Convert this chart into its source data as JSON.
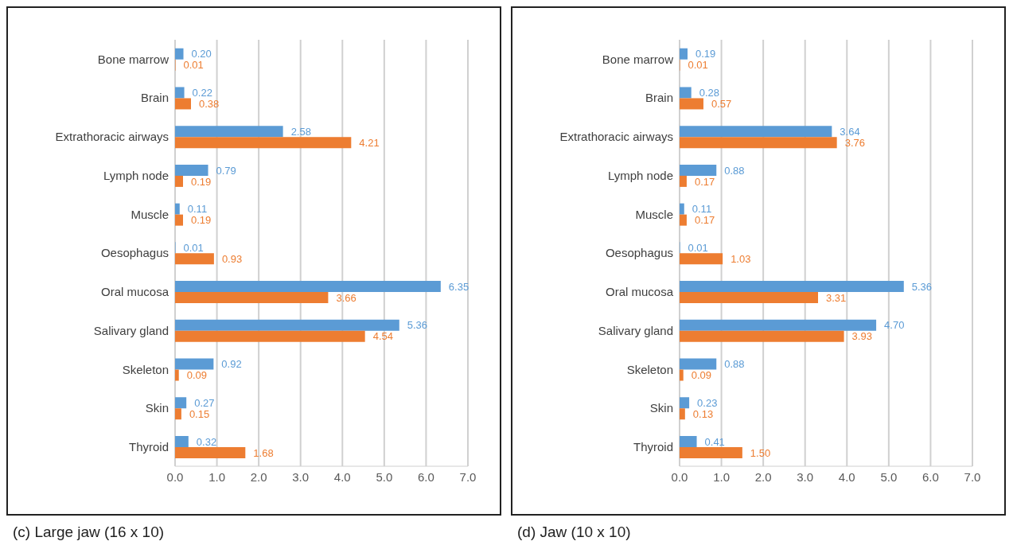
{
  "chart_data": [
    {
      "type": "bar",
      "orientation": "horizontal",
      "categories": [
        "Bone marrow",
        "Brain",
        "Extrathoracic airways",
        "Lymph node",
        "Muscle",
        "Oesophagus",
        "Oral mucosa",
        "Salivary gland",
        "Skeleton",
        "Skin",
        "Thyroid"
      ],
      "series": [
        {
          "color": "#5b9bd5",
          "values": [
            0.2,
            0.22,
            2.58,
            0.79,
            0.11,
            0.01,
            6.35,
            5.36,
            0.92,
            0.27,
            0.32
          ],
          "value_labels": [
            "0.20",
            "0.22",
            "2.58",
            "0.79",
            "0.11",
            "0.01",
            "6.35",
            "5.36",
            "0.92",
            "0.27",
            "0.32"
          ]
        },
        {
          "color": "#ed7d31",
          "values": [
            0.01,
            0.38,
            4.21,
            0.19,
            0.19,
            0.93,
            3.66,
            4.54,
            0.09,
            0.15,
            1.68
          ],
          "value_labels": [
            "0.01",
            "0.38",
            "4.21",
            "0.19",
            "0.19",
            "0.93",
            "3.66",
            "4.54",
            "0.09",
            "0.15",
            "1.68"
          ]
        }
      ],
      "xlim": [
        0,
        7
      ],
      "xticks": [
        {
          "value": 0,
          "label": "0.0"
        },
        {
          "value": 1,
          "label": "1.0"
        },
        {
          "value": 2,
          "label": "2.0"
        },
        {
          "value": 3,
          "label": "3.0"
        },
        {
          "value": 4,
          "label": "4.0"
        },
        {
          "value": 5,
          "label": "5.0"
        },
        {
          "value": 6,
          "label": "6.0"
        },
        {
          "value": 7,
          "label": "7.0"
        }
      ],
      "grid": "x",
      "legend": false,
      "annotations": [
        "(c) Large jaw (16 x 10)"
      ]
    },
    {
      "type": "bar",
      "orientation": "horizontal",
      "categories": [
        "Bone marrow",
        "Brain",
        "Extrathoracic airways",
        "Lymph node",
        "Muscle",
        "Oesophagus",
        "Oral mucosa",
        "Salivary gland",
        "Skeleton",
        "Skin",
        "Thyroid"
      ],
      "series": [
        {
          "color": "#5b9bd5",
          "values": [
            0.19,
            0.28,
            3.64,
            0.88,
            0.11,
            0.01,
            5.36,
            4.7,
            0.88,
            0.23,
            0.41
          ],
          "value_labels": [
            "0.19",
            "0.28",
            "3.64",
            "0.88",
            "0.11",
            "0.01",
            "5.36",
            "4.70",
            "0.88",
            "0.23",
            "0.41"
          ]
        },
        {
          "color": "#ed7d31",
          "values": [
            0.01,
            0.57,
            3.76,
            0.17,
            0.17,
            1.03,
            3.31,
            3.93,
            0.09,
            0.13,
            1.5
          ],
          "value_labels": [
            "0.01",
            "0.57",
            "3.76",
            "0.17",
            "0.17",
            "1.03",
            "3.31",
            "3.93",
            "0.09",
            "0.13",
            "1.50"
          ]
        }
      ],
      "xlim": [
        0,
        7
      ],
      "xticks": [
        {
          "value": 0,
          "label": "0.0"
        },
        {
          "value": 1,
          "label": "1.0"
        },
        {
          "value": 2,
          "label": "2.0"
        },
        {
          "value": 3,
          "label": "3.0"
        },
        {
          "value": 4,
          "label": "4.0"
        },
        {
          "value": 5,
          "label": "5.0"
        },
        {
          "value": 6,
          "label": "6.0"
        },
        {
          "value": 7,
          "label": "7.0"
        }
      ],
      "grid": "x",
      "legend": false,
      "annotations": [
        "(d) Jaw (10 x 10)"
      ]
    }
  ]
}
